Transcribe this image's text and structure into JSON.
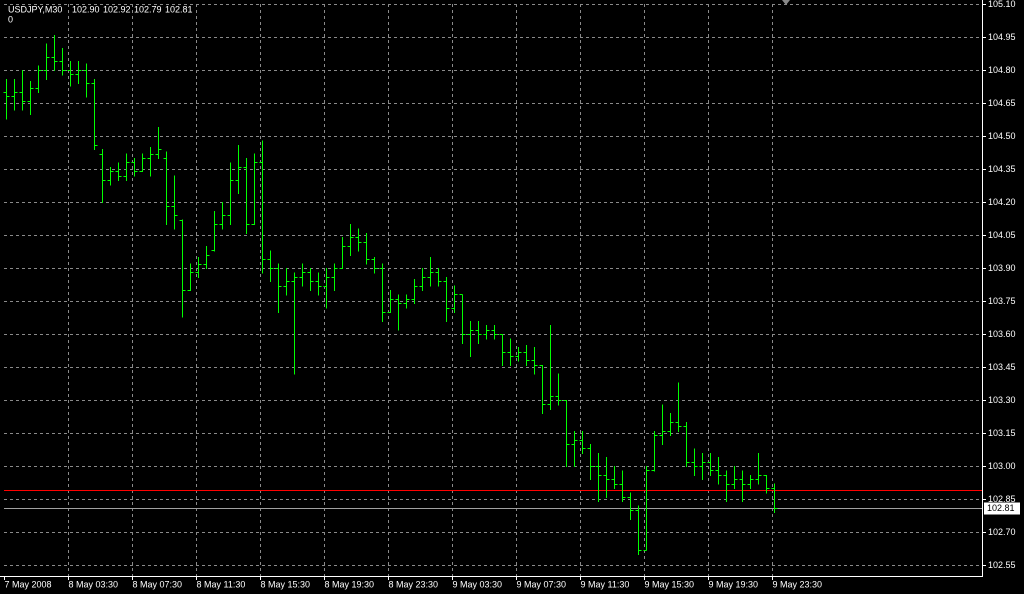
{
  "chart_data": {
    "type": "ohlc",
    "symbol": "USDJPY,M30",
    "header_values": [
      "102.90",
      "102.92",
      "102.79",
      "102.81"
    ],
    "subtitle": "0",
    "color": "#00ff00",
    "grid": true,
    "ylim": [
      102.5,
      105.1
    ],
    "yticks": [
      {
        "value": 105.1,
        "label": "105.10"
      },
      104.95,
      {
        "value": 104.8,
        "label": "104.80"
      },
      104.65,
      {
        "value": 104.5,
        "label": "104.50"
      },
      104.35,
      {
        "value": 104.2,
        "label": "104.20"
      },
      104.05,
      {
        "value": 103.9,
        "label": "103.90"
      },
      103.75,
      {
        "value": 103.6,
        "label": "103.60"
      },
      103.45,
      {
        "value": 103.3,
        "label": "103.30"
      },
      103.15,
      {
        "value": 103.0,
        "label": "103.00"
      },
      102.85,
      {
        "value": 102.7,
        "label": "102.70"
      },
      102.55
    ],
    "hline": {
      "value": 102.89,
      "color": "#ff0000"
    },
    "bid": {
      "value": 102.81,
      "label": "102.81"
    },
    "categories": [
      "7 May 2008",
      null,
      null,
      null,
      null,
      null,
      null,
      null,
      "8 May 03:30",
      null,
      null,
      null,
      null,
      null,
      null,
      null,
      "8 May 07:30",
      null,
      null,
      null,
      null,
      null,
      null,
      null,
      "8 May 11:30",
      null,
      null,
      null,
      null,
      null,
      null,
      null,
      "8 May 15:30",
      null,
      null,
      null,
      null,
      null,
      null,
      null,
      "8 May 19:30",
      null,
      null,
      null,
      null,
      null,
      null,
      null,
      "8 May 23:30",
      null,
      null,
      null,
      null,
      null,
      null,
      null,
      "9 May 03:30",
      null,
      null,
      null,
      null,
      null,
      null,
      null,
      "9 May 07:30",
      null,
      null,
      null,
      null,
      null,
      null,
      null,
      "9 May 11:30",
      null,
      null,
      null,
      null,
      null,
      null,
      null,
      "9 May 15:30",
      null,
      null,
      null,
      null,
      null,
      null,
      null,
      "9 May 19:30",
      null,
      null,
      null,
      null,
      null,
      null,
      null,
      "9 May 23:30"
    ],
    "bars": [
      [
        104.7,
        104.76,
        104.58,
        104.68
      ],
      [
        104.68,
        104.76,
        104.62,
        104.7
      ],
      [
        104.7,
        104.8,
        104.62,
        104.66
      ],
      [
        104.66,
        104.75,
        104.6,
        104.72
      ],
      [
        104.72,
        104.82,
        104.7,
        104.8
      ],
      [
        104.8,
        104.92,
        104.76,
        104.86
      ],
      [
        104.86,
        104.96,
        104.8,
        104.84
      ],
      [
        104.84,
        104.9,
        104.78,
        104.8
      ],
      [
        104.8,
        104.84,
        104.73,
        104.78
      ],
      [
        104.78,
        104.84,
        104.74,
        104.8
      ],
      [
        104.8,
        104.83,
        104.68,
        104.74
      ],
      [
        104.74,
        104.76,
        104.44,
        104.46
      ],
      [
        104.42,
        104.44,
        104.2,
        104.3
      ],
      [
        104.3,
        104.36,
        104.28,
        104.34
      ],
      [
        104.34,
        104.38,
        104.3,
        104.32
      ],
      [
        104.32,
        104.42,
        104.3,
        104.38
      ],
      [
        104.38,
        104.4,
        104.32,
        104.34
      ],
      [
        104.34,
        104.42,
        104.34,
        104.4
      ],
      [
        104.4,
        104.45,
        104.32,
        104.42
      ],
      [
        104.42,
        104.54,
        104.4,
        104.44
      ],
      [
        104.4,
        104.43,
        104.1,
        104.18
      ],
      [
        104.18,
        104.32,
        104.08,
        104.14
      ],
      [
        104.12,
        104.12,
        103.68,
        103.8
      ],
      [
        103.8,
        103.92,
        103.8,
        103.88
      ],
      [
        103.88,
        103.95,
        103.86,
        103.92
      ],
      [
        103.92,
        104.0,
        103.9,
        103.96
      ],
      [
        103.98,
        104.16,
        103.98,
        104.1
      ],
      [
        104.1,
        104.2,
        104.08,
        104.14
      ],
      [
        104.14,
        104.38,
        104.1,
        104.3
      ],
      [
        104.3,
        104.46,
        104.24,
        104.36
      ],
      [
        104.36,
        104.4,
        104.06,
        104.1
      ],
      [
        104.1,
        104.42,
        104.1,
        104.38
      ],
      [
        104.38,
        104.48,
        103.88,
        103.94
      ],
      [
        103.94,
        103.98,
        103.84,
        103.9
      ],
      [
        103.9,
        103.92,
        103.7,
        103.82
      ],
      [
        103.82,
        103.9,
        103.78,
        103.84
      ],
      [
        103.84,
        103.88,
        103.42,
        103.86
      ],
      [
        103.86,
        103.92,
        103.82,
        103.88
      ],
      [
        103.88,
        103.9,
        103.8,
        103.84
      ],
      [
        103.84,
        103.88,
        103.78,
        103.82
      ],
      [
        103.82,
        103.9,
        103.72,
        103.86
      ],
      [
        103.86,
        103.92,
        103.8,
        103.9
      ],
      [
        103.9,
        104.04,
        103.9,
        104.0
      ],
      [
        104.0,
        104.1,
        103.96,
        104.04
      ],
      [
        104.04,
        104.08,
        103.98,
        104.02
      ],
      [
        104.02,
        104.06,
        103.92,
        103.94
      ],
      [
        103.94,
        103.95,
        103.88,
        103.9
      ],
      [
        103.9,
        103.92,
        103.66,
        103.7
      ],
      [
        103.7,
        103.8,
        103.7,
        103.76
      ],
      [
        103.76,
        103.78,
        103.62,
        103.74
      ],
      [
        103.74,
        103.78,
        103.72,
        103.76
      ],
      [
        103.76,
        103.85,
        103.74,
        103.82
      ],
      [
        103.82,
        103.9,
        103.8,
        103.86
      ],
      [
        103.86,
        103.95,
        103.82,
        103.88
      ],
      [
        103.88,
        103.9,
        103.82,
        103.84
      ],
      [
        103.84,
        103.86,
        103.66,
        103.72
      ],
      [
        103.72,
        103.82,
        103.7,
        103.78
      ],
      [
        103.78,
        103.78,
        103.56,
        103.6
      ],
      [
        103.6,
        103.66,
        103.5,
        103.62
      ],
      [
        103.62,
        103.66,
        103.56,
        103.6
      ],
      [
        103.6,
        103.64,
        103.58,
        103.62
      ],
      [
        103.62,
        103.64,
        103.58,
        103.6
      ],
      [
        103.6,
        103.6,
        103.46,
        103.52
      ],
      [
        103.52,
        103.58,
        103.46,
        103.5
      ],
      [
        103.5,
        103.54,
        103.48,
        103.52
      ],
      [
        103.52,
        103.55,
        103.46,
        103.48
      ],
      [
        103.48,
        103.54,
        103.42,
        103.46
      ],
      [
        103.46,
        103.46,
        103.24,
        103.28
      ],
      [
        103.28,
        103.64,
        103.26,
        103.32
      ],
      [
        103.32,
        103.42,
        103.28,
        103.3
      ],
      [
        103.3,
        103.3,
        103.0,
        103.1
      ],
      [
        103.1,
        103.16,
        103.0,
        103.12
      ],
      [
        103.12,
        103.16,
        103.06,
        103.08
      ],
      [
        103.08,
        103.1,
        102.94,
        103.0
      ],
      [
        103.0,
        103.06,
        102.84,
        102.96
      ],
      [
        102.96,
        103.04,
        102.86,
        102.94
      ],
      [
        102.94,
        103.0,
        102.9,
        102.92
      ],
      [
        102.92,
        102.98,
        102.84,
        102.86
      ],
      [
        102.86,
        102.88,
        102.76,
        102.8
      ],
      [
        102.8,
        102.82,
        102.6,
        102.62
      ],
      [
        102.62,
        103.0,
        102.62,
        102.98
      ],
      [
        102.98,
        103.16,
        102.98,
        103.14
      ],
      [
        103.14,
        103.28,
        103.1,
        103.16
      ],
      [
        103.16,
        103.24,
        103.14,
        103.2
      ],
      [
        103.2,
        103.38,
        103.16,
        103.18
      ],
      [
        103.18,
        103.2,
        103.0,
        103.02
      ],
      [
        103.02,
        103.08,
        102.96,
        103.0
      ],
      [
        103.0,
        103.06,
        102.94,
        103.02
      ],
      [
        103.02,
        103.06,
        102.96,
        102.98
      ],
      [
        102.98,
        103.04,
        102.92,
        102.96
      ],
      [
        102.96,
        102.98,
        102.84,
        102.92
      ],
      [
        102.92,
        103.0,
        102.9,
        102.94
      ],
      [
        102.94,
        102.98,
        102.84,
        102.92
      ],
      [
        102.92,
        102.96,
        102.9,
        102.94
      ],
      [
        102.94,
        103.06,
        102.92,
        102.96
      ],
      [
        102.96,
        102.96,
        102.88,
        102.9
      ],
      [
        102.9,
        102.92,
        102.79,
        102.81
      ]
    ]
  }
}
